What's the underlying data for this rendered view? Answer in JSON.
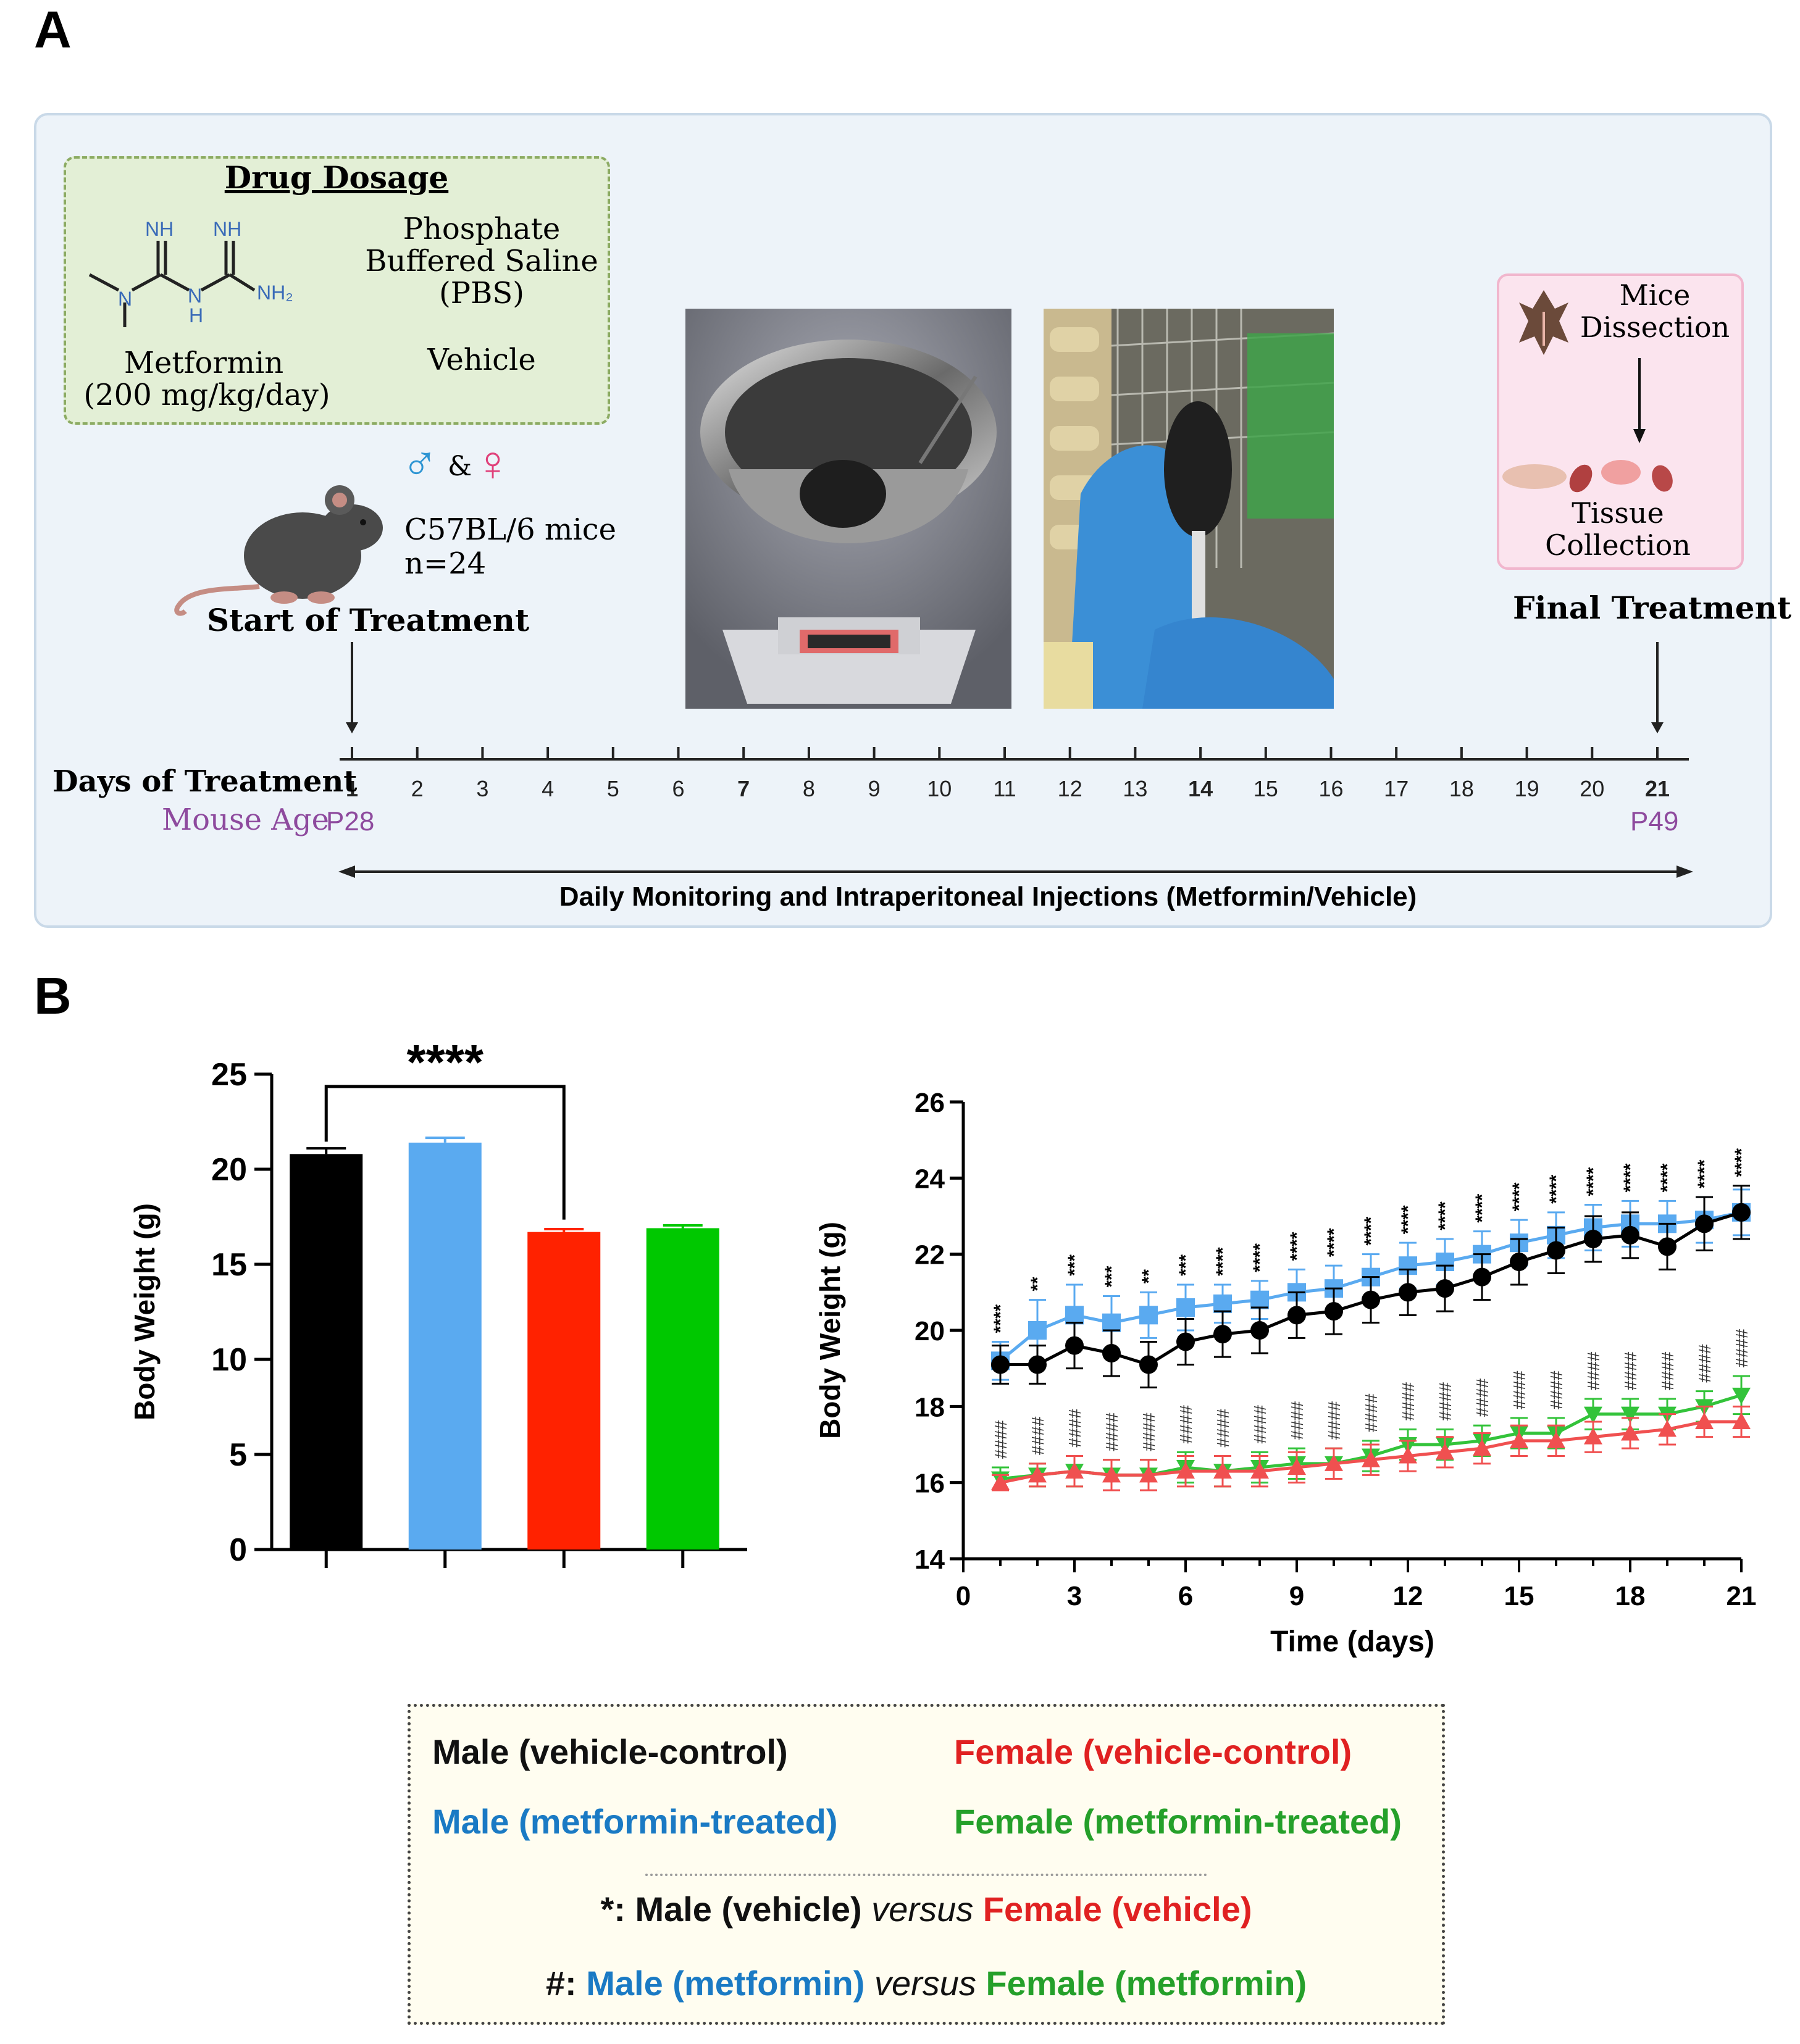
{
  "panel_a": {
    "letter": "A",
    "dosage": {
      "title": "Drug Dosage",
      "metformin_label": "Metformin",
      "metformin_dose": "(200 mg/kg/day)",
      "pbs_line1": "Phosphate",
      "pbs_line2": "Buffered Saline",
      "pbs_line3": "(PBS)",
      "vehicle_label": "Vehicle",
      "struct_labels": [
        "NH",
        "NH",
        "N",
        "N",
        "H",
        "NH₂"
      ]
    },
    "sexes": {
      "male_symbol": "♂",
      "amp": "&",
      "female_symbol": "♀"
    },
    "mice_line1": "C57BL/6 mice",
    "mice_line2": "n=24",
    "start_label": "Start of Treatment",
    "final_label": "Final Treatment",
    "dissection_line1": "Mice",
    "dissection_line2": "Dissection",
    "tissue_line1": "Tissue",
    "tissue_line2": "Collection",
    "timeline": {
      "days_label": "Days of Treatment",
      "age_label": "Mouse Age",
      "age_start": "P28",
      "age_end": "P49",
      "days": [
        "1",
        "2",
        "3",
        "4",
        "5",
        "6",
        "7",
        "8",
        "9",
        "10",
        "11",
        "12",
        "13",
        "14",
        "15",
        "16",
        "17",
        "18",
        "19",
        "20",
        "21"
      ],
      "bold_days": [
        "1",
        "7",
        "14",
        "21"
      ],
      "monitoring_label": "Daily Monitoring and Intraperitoneal Injections (Metformin/Vehicle)"
    },
    "colors": {
      "frame_bg": "#edf3f9",
      "dosage_bg": "#e3efd6",
      "dissection_bg": "#fbe4ee",
      "age_color": "#8e4a9e",
      "male_color": "#2e95d3",
      "female_color": "#e0407a"
    }
  },
  "panel_b": {
    "letter": "B",
    "bar_chart": {
      "type": "bar",
      "ylabel": "Body Weight (g)",
      "ylim": [
        0,
        25
      ],
      "yticks": [
        "0",
        "5",
        "10",
        "15",
        "20",
        "25"
      ],
      "values": [
        20.8,
        21.4,
        16.7,
        16.9
      ],
      "errors": [
        0.3,
        0.25,
        0.15,
        0.15
      ],
      "colors": [
        "#000000",
        "#5aaaf0",
        "#ff2200",
        "#00c800"
      ],
      "significance": "****"
    },
    "line_chart": {
      "type": "line",
      "xlabel": "Time (days)",
      "ylabel": "Body Weight (g)",
      "xlim": [
        0,
        21
      ],
      "ylim": [
        14,
        26
      ],
      "xticks": [
        "0",
        "3",
        "6",
        "9",
        "12",
        "15",
        "18",
        "21"
      ],
      "yticks": [
        "14",
        "16",
        "18",
        "20",
        "22",
        "24",
        "26"
      ],
      "x": [
        1,
        2,
        3,
        4,
        5,
        6,
        7,
        8,
        9,
        10,
        11,
        12,
        13,
        14,
        15,
        16,
        17,
        18,
        19,
        20,
        21
      ],
      "series": [
        {
          "color": "#5aaaf0",
          "marker": "square",
          "values": [
            19.2,
            20.0,
            20.4,
            20.2,
            20.4,
            20.6,
            20.7,
            20.8,
            21.0,
            21.1,
            21.4,
            21.7,
            21.8,
            22.0,
            22.3,
            22.5,
            22.7,
            22.8,
            22.8,
            22.9,
            23.1
          ],
          "errors": [
            0.5,
            0.8,
            0.8,
            0.7,
            0.6,
            0.6,
            0.5,
            0.5,
            0.6,
            0.6,
            0.6,
            0.6,
            0.6,
            0.6,
            0.6,
            0.6,
            0.6,
            0.6,
            0.6,
            0.6,
            0.6
          ]
        },
        {
          "color": "#000000",
          "marker": "circle",
          "values": [
            19.1,
            19.1,
            19.6,
            19.4,
            19.1,
            19.7,
            19.9,
            20.0,
            20.4,
            20.5,
            20.8,
            21.0,
            21.1,
            21.4,
            21.8,
            22.1,
            22.4,
            22.5,
            22.2,
            22.8,
            23.1
          ],
          "errors": [
            0.5,
            0.5,
            0.6,
            0.6,
            0.6,
            0.6,
            0.6,
            0.6,
            0.6,
            0.6,
            0.6,
            0.6,
            0.6,
            0.6,
            0.6,
            0.6,
            0.6,
            0.6,
            0.6,
            0.7,
            0.7
          ]
        },
        {
          "color": "#33c33a",
          "marker": "triangle-down",
          "values": [
            16.1,
            16.2,
            16.3,
            16.2,
            16.2,
            16.4,
            16.3,
            16.4,
            16.5,
            16.5,
            16.7,
            17.0,
            17.0,
            17.1,
            17.3,
            17.3,
            17.8,
            17.8,
            17.8,
            18.0,
            18.3
          ],
          "errors": [
            0.3,
            0.3,
            0.4,
            0.4,
            0.4,
            0.4,
            0.4,
            0.4,
            0.4,
            0.4,
            0.4,
            0.4,
            0.4,
            0.4,
            0.4,
            0.4,
            0.4,
            0.4,
            0.4,
            0.4,
            0.5
          ]
        },
        {
          "color": "#f05050",
          "marker": "triangle-up",
          "values": [
            16.0,
            16.2,
            16.3,
            16.2,
            16.2,
            16.3,
            16.3,
            16.3,
            16.4,
            16.5,
            16.6,
            16.7,
            16.8,
            16.9,
            17.1,
            17.1,
            17.2,
            17.3,
            17.4,
            17.6,
            17.6
          ],
          "errors": [
            0.2,
            0.3,
            0.4,
            0.4,
            0.4,
            0.4,
            0.4,
            0.4,
            0.4,
            0.4,
            0.4,
            0.4,
            0.4,
            0.4,
            0.4,
            0.4,
            0.4,
            0.4,
            0.4,
            0.4,
            0.4
          ]
        }
      ],
      "star_annotations": [
        "****",
        "**",
        "***",
        "***",
        "**",
        "***",
        "****",
        "****",
        "****",
        "****",
        "****",
        "****",
        "****",
        "****",
        "****",
        "****",
        "****",
        "****",
        "****",
        "****",
        "****"
      ],
      "hash_annotations": [
        "####",
        "####",
        "####",
        "####",
        "####",
        "####",
        "####",
        "####",
        "####",
        "####",
        "####",
        "####",
        "####",
        "####",
        "####",
        "####",
        "####",
        "####",
        "####",
        "####",
        "####"
      ]
    },
    "legend": {
      "male_vehicle": "Male (vehicle-control)",
      "female_vehicle": "Female (vehicle-control)",
      "male_metformin": "Male (metformin-treated)",
      "female_metformin": "Female (metformin-treated)",
      "star_prefix": "*: ",
      "star_male": "Male (vehicle)",
      "versus": "versus",
      "star_female": "Female (vehicle)",
      "hash_prefix": "#: ",
      "hash_male": "Male (metformin)",
      "hash_female": "Female (metformin)"
    }
  }
}
